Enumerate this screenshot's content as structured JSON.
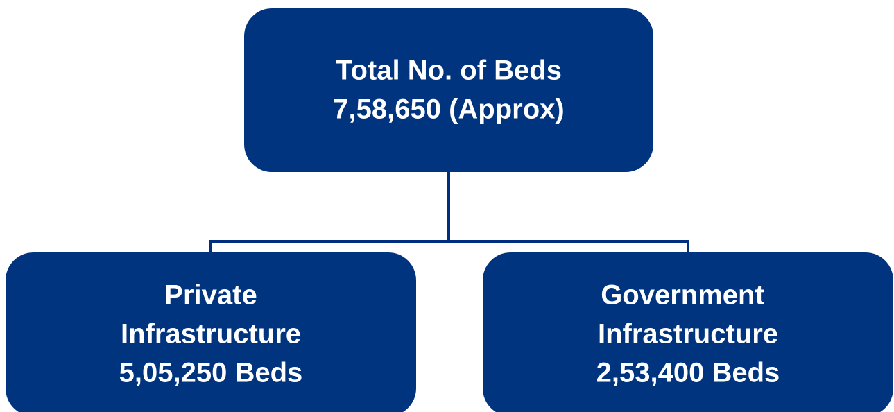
{
  "nodes": [
    {
      "lines": [
        "Total No. of Beds",
        "7,58,650 (Approx)"
      ]
    },
    {
      "lines": [
        "Private",
        "Infrastructure",
        "5,05,250 Beds"
      ]
    },
    {
      "lines": [
        "Government",
        "Infrastructure",
        "2,53,400 Beds"
      ]
    }
  ]
}
